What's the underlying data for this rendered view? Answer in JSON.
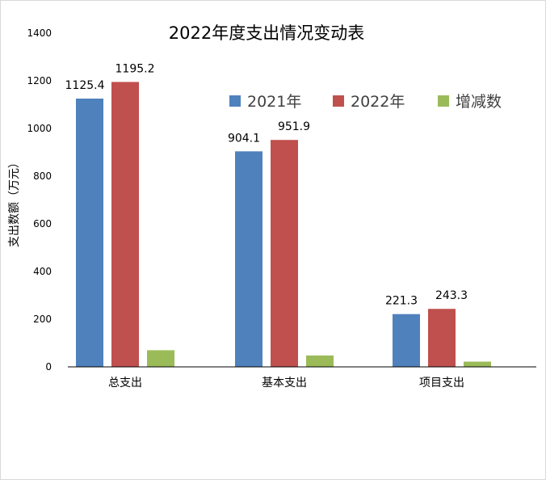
{
  "chart_data": {
    "type": "bar",
    "title": "2022年度支出情况变动表",
    "ylabel": "支出数额（万元）",
    "xlabel": "",
    "ylim": [
      0,
      1400
    ],
    "yticks": [
      "0",
      "200",
      "400",
      "600",
      "800",
      "1000",
      "1200",
      "1400"
    ],
    "grid": false,
    "legend_position": "top-right",
    "categories": [
      "总支出",
      "基本支出",
      "项目支出"
    ],
    "series": [
      {
        "name": "2021年",
        "color": "#4f81bd",
        "values": [
          1125.4,
          904.1,
          221.3
        ],
        "labels": [
          "1125.4",
          "904.1",
          "221.3"
        ]
      },
      {
        "name": "2022年",
        "color": "#c0504d",
        "values": [
          1195.2,
          951.9,
          243.3
        ],
        "labels": [
          "1195.2",
          "951.9",
          "243.3"
        ]
      },
      {
        "name": "增减数",
        "color": "#9bbb59",
        "values": [
          69.8,
          47.8,
          22.0
        ],
        "labels": [
          "",
          "",
          ""
        ]
      }
    ]
  }
}
